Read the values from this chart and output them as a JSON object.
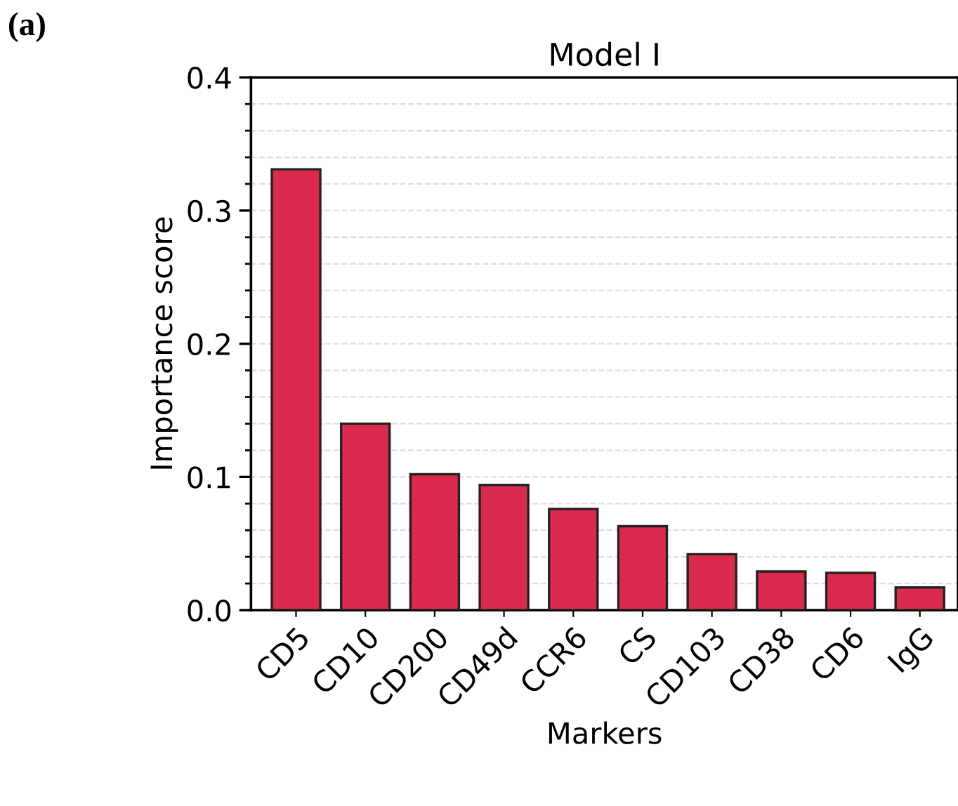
{
  "chart_data": {
    "type": "bar",
    "title": "Model I",
    "xlabel": "Markers",
    "ylabel": "Importance score",
    "annotations": [
      "(a)"
    ],
    "categories": [
      "CD5",
      "CD10",
      "CD200",
      "CD49d",
      "CCR6",
      "CS",
      "CD103",
      "CD38",
      "CD6",
      "IgG"
    ],
    "values": [
      0.331,
      0.14,
      0.102,
      0.094,
      0.076,
      0.063,
      0.042,
      0.029,
      0.028,
      0.017
    ],
    "color": "#dc2a4e",
    "ylim": [
      0,
      0.4
    ],
    "yticks": [
      {
        "value": 0,
        "label": "0.0"
      },
      {
        "value": 0.02,
        "label": null
      },
      {
        "value": 0.04,
        "label": null
      },
      {
        "value": 0.06,
        "label": null
      },
      {
        "value": 0.08,
        "label": null
      },
      0.1,
      {
        "value": 0.12,
        "label": null
      },
      {
        "value": 0.14,
        "label": null
      },
      {
        "value": 0.16,
        "label": null
      },
      {
        "value": 0.18,
        "label": null
      },
      0.2,
      {
        "value": 0.22,
        "label": null
      },
      {
        "value": 0.24,
        "label": null
      },
      {
        "value": 0.26,
        "label": null
      },
      {
        "value": 0.28,
        "label": null
      },
      0.3,
      {
        "value": 0.32,
        "label": null
      },
      {
        "value": 0.34,
        "label": null
      },
      {
        "value": 0.36,
        "label": null
      },
      {
        "value": 0.38,
        "label": null
      },
      0.4
    ],
    "grid": "y"
  }
}
